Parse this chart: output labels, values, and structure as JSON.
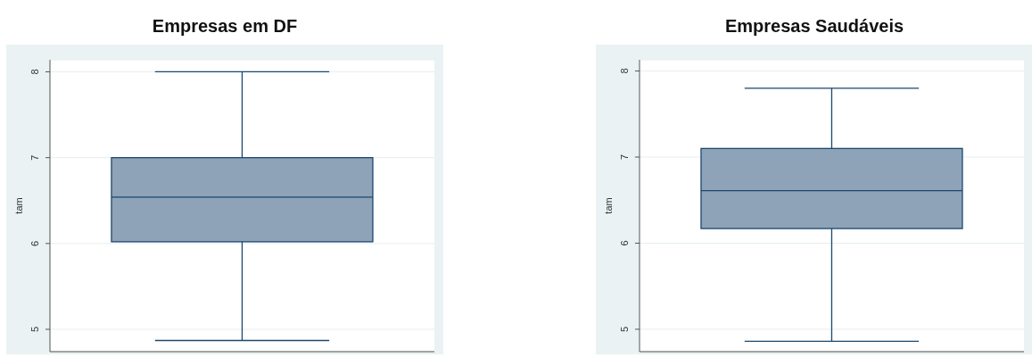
{
  "chart_data": [
    {
      "type": "box",
      "title": "Empresas em DF",
      "ylabel": "tam",
      "categories": [
        null
      ],
      "color": "#8ea3b8",
      "boxes": [
        {
          "low": 4.87,
          "q1": 6.02,
          "median": 6.54,
          "q3": 7.0,
          "high": 8.0
        }
      ],
      "ylim": [
        4.74,
        8.14
      ],
      "yticks": [
        5,
        6,
        7,
        8
      ],
      "grid": "y"
    },
    {
      "type": "box",
      "title": "Empresas Saudáveis",
      "ylabel": "tam",
      "categories": [
        null
      ],
      "color": "#8ea3b8",
      "boxes": [
        {
          "low": 4.86,
          "q1": 6.17,
          "median": 6.61,
          "q3": 7.1,
          "high": 7.8
        }
      ],
      "ylim": [
        4.74,
        8.13
      ],
      "yticks": [
        5,
        6,
        7,
        8
      ],
      "grid": "y"
    }
  ]
}
